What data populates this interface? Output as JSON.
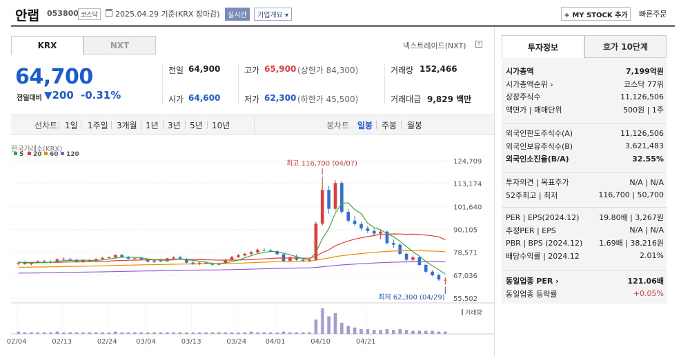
{
  "header": {
    "name": "안랩",
    "code": "053800",
    "market": "코스닥",
    "date_text": "2025.04.29  기준(KRX 장마감)",
    "realtime": "실시간",
    "overview": "기업개요 ▾",
    "mystock": "+ MY STOCK 추가",
    "quick_order": "빠른주문"
  },
  "tabs": {
    "krx": "KRX",
    "nxt": "NXT",
    "nextrade": "넥스트레이드(NXT)"
  },
  "quote": {
    "price": "64,700",
    "change_label": "전일대비",
    "change": "▼200",
    "change_pct": "-0.31%",
    "prev_label": "전일",
    "prev": "64,900",
    "high_label": "고가",
    "high": "65,900",
    "upper_limit": "(상한가 84,300)",
    "volume_label": "거래량",
    "volume": "152,466",
    "open_label": "시가",
    "open": "64,600",
    "low_label": "저가",
    "low": "62,300",
    "lower_limit": "(하한가 45,500)",
    "value_label": "거래대금",
    "value": "9,829 백만"
  },
  "periods": [
    "선차트",
    "1일",
    "1주일",
    "3개월",
    "1년",
    "3년",
    "5년",
    "10년"
  ],
  "candle_periods": [
    "봉차트",
    "일봉",
    "주봉",
    "월봉"
  ],
  "chart_data": {
    "type": "candlestick",
    "source": "한국거래소(KRX)",
    "legend": [
      "5",
      "20",
      "60",
      "120"
    ],
    "legend_colors": [
      "#3daa3d",
      "#e03c3c",
      "#f08c00",
      "#9b59d0"
    ],
    "y_ticks": [
      "124,709",
      "113,174",
      "101,640",
      "90,105",
      "78,571",
      "67,036",
      "55,502"
    ],
    "x_ticks": [
      "02/04",
      "02/13",
      "02/24",
      "03/04",
      "03/13",
      "03/24",
      "04/01",
      "04/10",
      "04/21"
    ],
    "max_label": "최고 116,700 (04/07)",
    "min_label": "최저 62,300 (04/29)",
    "volume_label": "거래량",
    "up_color": "#e03c3c",
    "down_color": "#2f6fdb",
    "candles": [
      [
        72800,
        74000,
        72000,
        73200
      ],
      [
        73200,
        74200,
        72300,
        72600
      ],
      [
        72600,
        73500,
        72000,
        73300
      ],
      [
        73300,
        74500,
        73000,
        74000
      ],
      [
        74000,
        74800,
        73500,
        73800
      ],
      [
        73800,
        74500,
        73000,
        73500
      ],
      [
        73500,
        75500,
        73200,
        75000
      ],
      [
        75000,
        76000,
        74500,
        75200
      ],
      [
        75200,
        75800,
        74500,
        74800
      ],
      [
        74800,
        75200,
        73500,
        73800
      ],
      [
        73800,
        74800,
        73400,
        74500
      ],
      [
        74500,
        75200,
        73800,
        74200
      ],
      [
        74200,
        75500,
        74000,
        75200
      ],
      [
        75200,
        76200,
        74800,
        75800
      ],
      [
        75800,
        76500,
        75000,
        76000
      ],
      [
        76000,
        77500,
        75500,
        77200
      ],
      [
        77200,
        77800,
        75800,
        76200
      ],
      [
        76200,
        76800,
        75000,
        75300
      ],
      [
        75300,
        76000,
        74500,
        75600
      ],
      [
        75600,
        76200,
        74800,
        75000
      ],
      [
        75000,
        75500,
        73500,
        73800
      ],
      [
        73800,
        75000,
        73200,
        74500
      ],
      [
        74500,
        75200,
        73600,
        74000
      ],
      [
        74000,
        75800,
        73800,
        75500
      ],
      [
        75500,
        76500,
        75000,
        76000
      ],
      [
        76000,
        76800,
        74800,
        75200
      ],
      [
        75200,
        75600,
        73000,
        73400
      ],
      [
        73400,
        74200,
        72200,
        72600
      ],
      [
        72600,
        73800,
        72000,
        73300
      ],
      [
        73300,
        74200,
        72600,
        73000
      ],
      [
        73000,
        73500,
        71800,
        72300
      ],
      [
        72300,
        73400,
        71800,
        72900
      ],
      [
        72900,
        75200,
        72600,
        74800
      ],
      [
        74800,
        76800,
        74500,
        76200
      ],
      [
        76200,
        77800,
        75800,
        77000
      ],
      [
        77000,
        78300,
        76500,
        77800
      ],
      [
        77800,
        79200,
        77200,
        78600
      ],
      [
        78600,
        80500,
        78000,
        79800
      ],
      [
        79800,
        80800,
        79000,
        79500
      ],
      [
        79500,
        80200,
        78600,
        79200
      ],
      [
        79200,
        79600,
        77200,
        77600
      ],
      [
        77600,
        78400,
        73500,
        74200
      ],
      [
        74200,
        76500,
        73800,
        76000
      ],
      [
        76000,
        77500,
        74200,
        74800
      ],
      [
        74800,
        75500,
        73600,
        74300
      ],
      [
        74300,
        75000,
        73500,
        74800
      ],
      [
        74800,
        94000,
        74500,
        93000
      ],
      [
        93000,
        116700,
        92000,
        110000
      ],
      [
        110000,
        112000,
        98000,
        100500
      ],
      [
        100500,
        115000,
        99500,
        113500
      ],
      [
        113500,
        114500,
        98000,
        99000
      ],
      [
        99000,
        100500,
        93500,
        94500
      ],
      [
        94500,
        96800,
        91800,
        92800
      ],
      [
        92800,
        94000,
        89500,
        90600
      ],
      [
        90600,
        91800,
        88200,
        89300
      ],
      [
        89300,
        90500,
        86800,
        88000
      ],
      [
        88000,
        90000,
        85200,
        89000
      ],
      [
        89000,
        89500,
        82500,
        83200
      ],
      [
        83200,
        85000,
        80800,
        82400
      ],
      [
        82400,
        83200,
        77200,
        77800
      ],
      [
        77800,
        78500,
        74200,
        74800
      ],
      [
        74800,
        76800,
        73500,
        76000
      ],
      [
        76000,
        76800,
        71800,
        72200
      ],
      [
        72200,
        72800,
        68200,
        68800
      ],
      [
        68800,
        69500,
        66500,
        67000
      ],
      [
        67000,
        67800,
        64200,
        64900
      ],
      [
        64600,
        65900,
        62300,
        64700
      ]
    ],
    "volumes": [
      3,
      2,
      2,
      2,
      2,
      2,
      3,
      2,
      2,
      2,
      2,
      2,
      2,
      2,
      2,
      3,
      2,
      2,
      2,
      2,
      2,
      2,
      2,
      2,
      2,
      2,
      2,
      2,
      2,
      2,
      2,
      2,
      2,
      2,
      2,
      2,
      3,
      2,
      2,
      2,
      2,
      3,
      2,
      2,
      2,
      2,
      18,
      32,
      22,
      26,
      14,
      10,
      8,
      6,
      6,
      5,
      5,
      6,
      5,
      6,
      5,
      4,
      4,
      4,
      4,
      3,
      3
    ]
  },
  "right_panel": {
    "tab_invest": "투자정보",
    "tab_ask": "호가 10단계",
    "rows1": [
      [
        "시가총액",
        "7,199억원"
      ],
      [
        "시가총액순위 ›",
        "코스닥 77위"
      ],
      [
        "상장주식수",
        "11,126,506"
      ],
      [
        "액면가 | 매매단위",
        "500원 | 1주"
      ]
    ],
    "rows2": [
      [
        "외국인한도주식수(A)",
        "11,126,506"
      ],
      [
        "외국인보유주식수(B)",
        "3,621,483"
      ],
      [
        "외국인소진율(B/A)",
        "32.55%"
      ]
    ],
    "rows3": [
      [
        "투자의견 | 목표주가",
        "N/A | N/A"
      ],
      [
        "52주최고 | 최저",
        "116,700 | 50,700"
      ]
    ],
    "rows4": [
      [
        "PER | EPS(2024.12)",
        "19.80배 | 3,267원"
      ],
      [
        "추정PER | EPS",
        "N/A | N/A"
      ],
      [
        "PBR | BPS (2024.12)",
        "1.69배 | 38,216원"
      ],
      [
        "배당수익률 | 2024.12",
        "2.01%"
      ]
    ],
    "rows5": [
      [
        "동일업종 PER ›",
        "121.06배"
      ],
      [
        "동일업종 등락률",
        "+0.05%"
      ]
    ]
  }
}
